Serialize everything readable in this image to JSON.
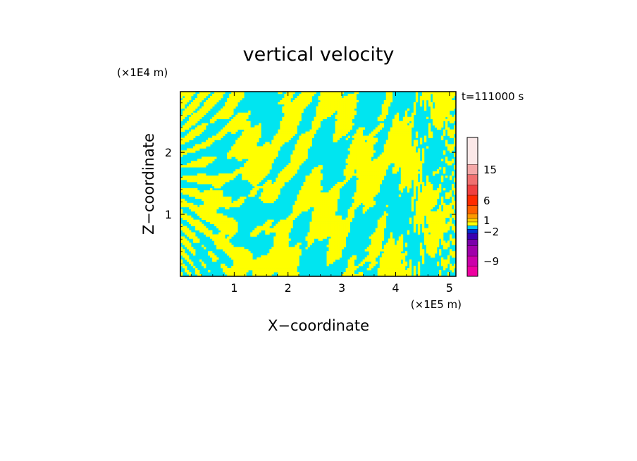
{
  "chart_data": {
    "type": "heatmap",
    "title": "vertical velocity",
    "xlabel": "X−coordinate",
    "ylabel": "Z−coordinate",
    "x_unit": "(×1E5 m)",
    "y_unit": "(×1E4 m)",
    "time_label": "t=111000 s",
    "xlim": [
      0,
      5.12
    ],
    "ylim": [
      0,
      2.98
    ],
    "x_ticks": [
      1,
      2,
      3,
      4,
      5
    ],
    "x_tick_labels": [
      "1",
      "2",
      "3",
      "4",
      "5"
    ],
    "y_ticks": [
      1,
      2
    ],
    "y_tick_labels": [
      "1",
      "2"
    ],
    "field_colors": {
      "negative": "#00e5f0",
      "positive": "#ffff00"
    },
    "colorbar": {
      "tick_labels": [
        "15",
        "6",
        "1",
        "−2",
        "−9"
      ],
      "tick_levels": [
        15,
        6,
        1,
        -2,
        -9
      ],
      "levels": [
        {
          "value": -11,
          "color": "#ee00a0"
        },
        {
          "value": -9,
          "color": "#cc00aa"
        },
        {
          "value": -7,
          "color": "#a000aa"
        },
        {
          "value": -5,
          "color": "#7a00aa"
        },
        {
          "value": -3,
          "color": "#3a00b0"
        },
        {
          "value": -2,
          "color": "#0030d0"
        },
        {
          "value": -1,
          "color": "#00c8ff"
        },
        {
          "value": 0,
          "color": "#ffff00"
        },
        {
          "value": 1,
          "color": "#ffcc00"
        },
        {
          "value": 2,
          "color": "#ff9900"
        },
        {
          "value": 4,
          "color": "#ff6000"
        },
        {
          "value": 6,
          "color": "#ff2a00"
        },
        {
          "value": 9,
          "color": "#f04040"
        },
        {
          "value": 12,
          "color": "#f07070"
        },
        {
          "value": 15,
          "color": "#f4a8a8"
        },
        {
          "value": 20,
          "color": "#fbe8e8"
        }
      ]
    }
  }
}
